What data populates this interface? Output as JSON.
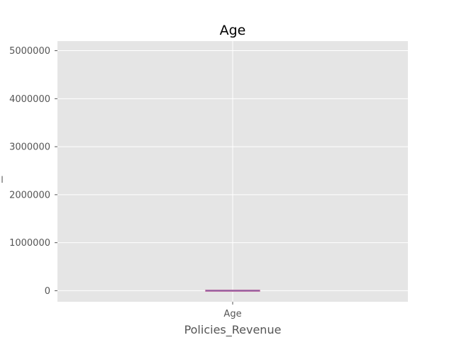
{
  "chart_data": {
    "type": "box",
    "title": "Age",
    "xlabel": "Policies_Revenue",
    "ylabel": "l",
    "categories": [
      "Age"
    ],
    "yticks": [
      0,
      1000000,
      2000000,
      3000000,
      4000000,
      5000000
    ],
    "ytick_labels": [
      "0",
      "1000000",
      "2000000",
      "3000000",
      "4000000",
      "5000000"
    ],
    "ylim": [
      -230000,
      5200000
    ],
    "box": {
      "min": 0,
      "q1": 0,
      "median": 0,
      "q3": 0,
      "max": 0
    },
    "grid": true,
    "colors": {
      "plot_bg": "#e5e5e5",
      "grid": "#ffffff",
      "box": "#cc79a7",
      "median": "#8a5fa2"
    }
  }
}
